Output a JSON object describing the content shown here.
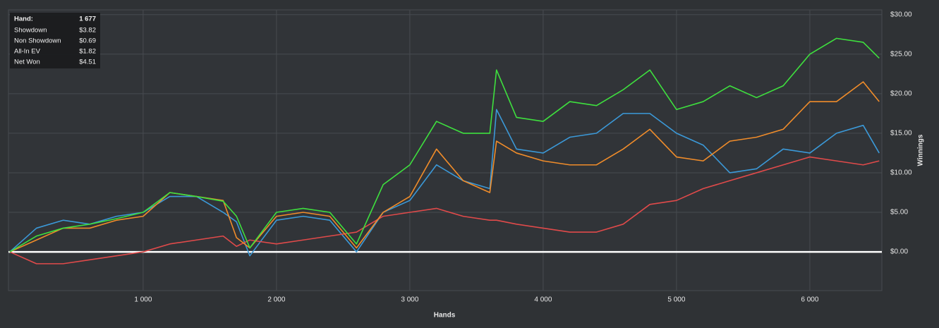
{
  "chart_data": {
    "type": "line",
    "xlabel": "Hands",
    "ylabel": "Winnings",
    "x": [
      0,
      200,
      400,
      600,
      800,
      1000,
      1200,
      1400,
      1600,
      1700,
      1800,
      2000,
      2200,
      2400,
      2600,
      2800,
      3000,
      3200,
      3400,
      3600,
      3650,
      3800,
      4000,
      4200,
      4400,
      4600,
      4800,
      5000,
      5200,
      5400,
      5600,
      5800,
      6000,
      6200,
      6400,
      6520
    ],
    "series": [
      {
        "name": "Showdown",
        "color": "#3b99d8",
        "values": [
          0,
          3,
          4,
          3.5,
          4.5,
          5,
          7,
          7,
          5,
          3.8,
          -0.5,
          4,
          4.5,
          4,
          0,
          5,
          6.5,
          11,
          9,
          8,
          18,
          13,
          12.5,
          14.5,
          15,
          17.5,
          17.5,
          15,
          13.5,
          10,
          10.5,
          13,
          12.5,
          15,
          16,
          12.5
        ]
      },
      {
        "name": "Non Showdown",
        "color": "#e04a4a",
        "values": [
          0,
          -1.5,
          -1.5,
          -1,
          -0.5,
          0,
          1,
          1.5,
          2,
          0.7,
          1.5,
          1,
          1.5,
          2,
          2.5,
          4.5,
          5,
          5.5,
          4.5,
          4,
          4,
          3.5,
          3,
          2.5,
          2.5,
          3.5,
          6,
          6.5,
          8,
          9,
          10,
          11,
          12,
          11.5,
          11,
          11.5
        ]
      },
      {
        "name": "All-In EV",
        "color": "#f08c2a",
        "values": [
          0,
          1.5,
          3,
          3,
          4,
          4.5,
          7.5,
          7,
          6.5,
          1.8,
          0.5,
          4.5,
          5,
          4.5,
          0.5,
          5,
          7,
          13,
          9,
          7.5,
          14,
          12.5,
          11.5,
          11,
          11,
          13,
          15.5,
          12,
          11.5,
          14,
          14.5,
          15.5,
          19,
          19,
          21.5,
          19
        ]
      },
      {
        "name": "Net Won",
        "color": "#3ee03e",
        "values": [
          0,
          2,
          3,
          3.5,
          4.2,
          5,
          7.5,
          7,
          6.4,
          4.51,
          0.5,
          5,
          5.5,
          5,
          1,
          8.5,
          11,
          16.5,
          15,
          15,
          23,
          17,
          16.5,
          19,
          18.5,
          20.5,
          23,
          18,
          19,
          21,
          19.5,
          21,
          25,
          27,
          26.5,
          24.5
        ]
      }
    ],
    "xlim": [
      -10,
      6540
    ],
    "ylim": [
      -4.9,
      30.6
    ],
    "xticks": [
      {
        "value": 1000,
        "label": "1 000"
      },
      {
        "value": 2000,
        "label": "2 000"
      },
      {
        "value": 3000,
        "label": "3 000"
      },
      {
        "value": 4000,
        "label": "4 000"
      },
      {
        "value": 5000,
        "label": "5 000"
      },
      {
        "value": 6000,
        "label": "6 000"
      }
    ],
    "yticks": [
      {
        "value": 0,
        "label": "$0.00"
      },
      {
        "value": 5,
        "label": "$5.00"
      },
      {
        "value": 10,
        "label": "$10.00"
      },
      {
        "value": 15,
        "label": "$15.00"
      },
      {
        "value": 20,
        "label": "$20.00"
      },
      {
        "value": 25,
        "label": "$25.00"
      },
      {
        "value": 30,
        "label": "$30.00"
      }
    ],
    "grid": true,
    "tooltip": {
      "title": "Hand:",
      "hand": "1 677",
      "value_labels": [
        "$3.82",
        "$0.69",
        "$1.82",
        "$4.51"
      ]
    }
  }
}
